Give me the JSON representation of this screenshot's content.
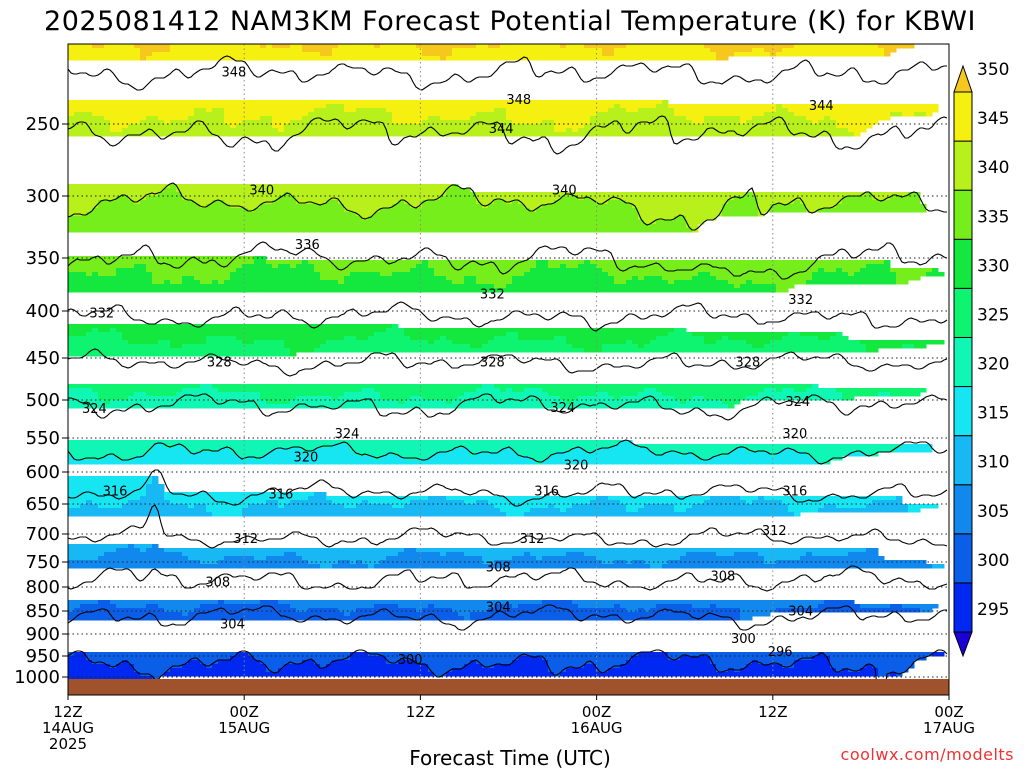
{
  "chart_data": {
    "type": "heatmap",
    "title": "2025081412 NAM3KM Forecast Potential Temperature (K) for KBWI",
    "xlabel": "Forecast Time (UTC)",
    "ylabel": "",
    "credit": "coolwx.com/modelts",
    "y_scale": "pressure (hPa, reversed)",
    "ylim": [
      1000,
      200
    ],
    "y_ticks": [
      "250",
      "300",
      "350",
      "400",
      "450",
      "500",
      "550",
      "600",
      "650",
      "700",
      "750",
      "800",
      "850",
      "900",
      "950",
      "1000"
    ],
    "y_tick_values": [
      250,
      300,
      350,
      400,
      450,
      500,
      550,
      600,
      650,
      700,
      750,
      800,
      850,
      900,
      950,
      1000
    ],
    "x_ticks": [
      {
        "hour": 0,
        "line1": "12Z",
        "line2": "14AUG",
        "line3": "2025"
      },
      {
        "hour": 12,
        "line1": "00Z",
        "line2": "15AUG",
        "line3": ""
      },
      {
        "hour": 24,
        "line1": "12Z",
        "line2": "",
        "line3": ""
      },
      {
        "hour": 36,
        "line1": "00Z",
        "line2": "16AUG",
        "line3": ""
      },
      {
        "hour": 48,
        "line1": "12Z",
        "line2": "",
        "line3": ""
      },
      {
        "hour": 60,
        "line1": "00Z",
        "line2": "17AUG",
        "line3": ""
      }
    ],
    "xlim_hours": [
      0,
      60
    ],
    "grid": true,
    "colorbar": {
      "levels": [
        "295",
        "300",
        "305",
        "310",
        "315",
        "320",
        "325",
        "330",
        "335",
        "340",
        "345",
        "350"
      ],
      "level_values": [
        295,
        300,
        305,
        310,
        315,
        320,
        325,
        330,
        335,
        340,
        345,
        350
      ],
      "colors": [
        "#1a00d6",
        "#0028f0",
        "#0a5ee8",
        "#1188ee",
        "#18b8f4",
        "#16e6f2",
        "#10f6b4",
        "#0ef470",
        "#14e83e",
        "#76ee1c",
        "#b8f01c",
        "#f6f010",
        "#f6c81e"
      ]
    },
    "contour_interval": 4,
    "profile": {
      "pressure": [
        1000,
        950,
        900,
        850,
        800,
        750,
        700,
        650,
        600,
        550,
        500,
        450,
        400,
        350,
        300,
        250,
        200
      ],
      "theta": [
        299.0,
        300.5,
        302.5,
        304.5,
        307.5,
        309.5,
        312.5,
        315.0,
        318.0,
        321.5,
        324.5,
        328.5,
        332.5,
        336.0,
        340.5,
        344.5,
        349.5
      ]
    },
    "contour_labels": [
      {
        "text": "348",
        "hour": 11.3,
        "p": 214
      },
      {
        "text": "348",
        "hour": 30.7,
        "p": 233
      },
      {
        "text": "344",
        "hour": 29.5,
        "p": 253
      },
      {
        "text": "344",
        "hour": 51.3,
        "p": 237
      },
      {
        "text": "340",
        "hour": 13.2,
        "p": 296
      },
      {
        "text": "340",
        "hour": 33.8,
        "p": 296
      },
      {
        "text": "336",
        "hour": 16.3,
        "p": 339
      },
      {
        "text": "332",
        "hour": 2.3,
        "p": 402
      },
      {
        "text": "332",
        "hour": 28.9,
        "p": 384
      },
      {
        "text": "332",
        "hour": 49.9,
        "p": 389
      },
      {
        "text": "328",
        "hour": 10.3,
        "p": 455
      },
      {
        "text": "328",
        "hour": 28.9,
        "p": 455
      },
      {
        "text": "328",
        "hour": 46.3,
        "p": 455
      },
      {
        "text": "324",
        "hour": 1.8,
        "p": 511
      },
      {
        "text": "324",
        "hour": 19.0,
        "p": 544
      },
      {
        "text": "324",
        "hour": 33.7,
        "p": 510
      },
      {
        "text": "324",
        "hour": 49.7,
        "p": 502
      },
      {
        "text": "320",
        "hour": 16.2,
        "p": 578
      },
      {
        "text": "320",
        "hour": 34.6,
        "p": 590
      },
      {
        "text": "320",
        "hour": 49.5,
        "p": 544
      },
      {
        "text": "316",
        "hour": 3.2,
        "p": 630
      },
      {
        "text": "316",
        "hour": 14.5,
        "p": 634
      },
      {
        "text": "316",
        "hour": 32.6,
        "p": 630
      },
      {
        "text": "316",
        "hour": 49.5,
        "p": 630
      },
      {
        "text": "312",
        "hour": 12.1,
        "p": 708
      },
      {
        "text": "312",
        "hour": 31.6,
        "p": 708
      },
      {
        "text": "312",
        "hour": 48.1,
        "p": 694
      },
      {
        "text": "308",
        "hour": 10.2,
        "p": 790
      },
      {
        "text": "308",
        "hour": 29.3,
        "p": 760
      },
      {
        "text": "308",
        "hour": 44.6,
        "p": 778
      },
      {
        "text": "304",
        "hour": 11.2,
        "p": 878
      },
      {
        "text": "304",
        "hour": 29.3,
        "p": 842
      },
      {
        "text": "304",
        "hour": 49.9,
        "p": 850
      },
      {
        "text": "300",
        "hour": 23.3,
        "p": 958
      },
      {
        "text": "300",
        "hour": 46.0,
        "p": 910
      },
      {
        "text": "296",
        "hour": 48.5,
        "p": 940
      }
    ]
  }
}
